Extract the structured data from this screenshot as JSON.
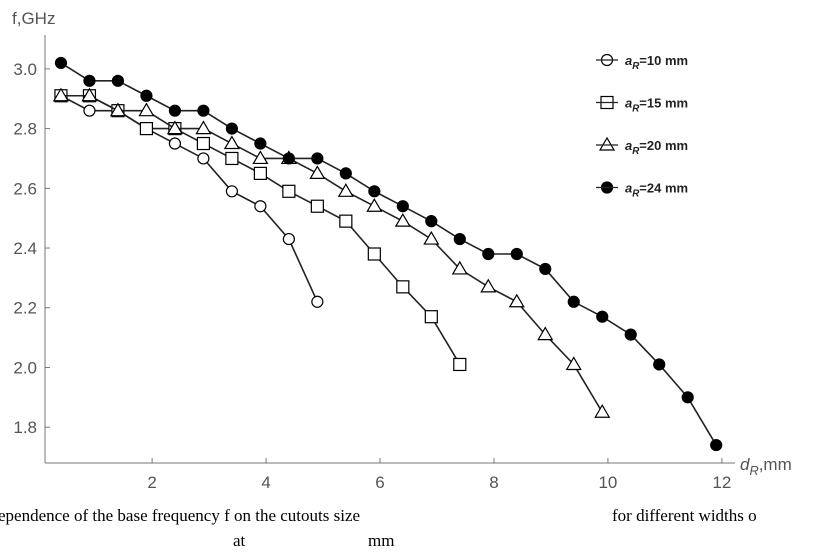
{
  "chart_data": {
    "type": "line",
    "ylabel": "f,GHz",
    "xlabel": "dR,mm",
    "xlim": [
      0.12,
      12.23
    ],
    "ylim": [
      1.68,
      3.08
    ],
    "xticks": [
      2,
      4,
      6,
      8,
      10,
      12
    ],
    "yticks": [
      1.8,
      {
        "value": 2,
        "label": "2.0"
      },
      2.2,
      2.4,
      2.6,
      2.8,
      {
        "value": 3,
        "label": "3.0"
      }
    ],
    "series": [
      {
        "name": "aR=10 mm",
        "marker": "circle",
        "color": "#ffffff",
        "x": [
          0.4,
          0.9,
          1.4,
          1.9,
          2.4,
          2.9,
          3.4,
          3.9,
          4.4,
          4.9
        ],
        "values": [
          2.91,
          2.86,
          2.86,
          2.8,
          2.75,
          2.7,
          2.59,
          2.54,
          2.43,
          2.22
        ]
      },
      {
        "name": "aR=15 mm",
        "marker": "square",
        "color": "#ffffff",
        "x": [
          0.4,
          0.9,
          1.4,
          1.9,
          2.4,
          2.9,
          3.4,
          3.9,
          4.4,
          4.9,
          5.4,
          5.9,
          6.4,
          6.9,
          7.4
        ],
        "values": [
          2.91,
          2.91,
          2.86,
          2.8,
          2.8,
          2.75,
          2.7,
          2.65,
          2.59,
          2.54,
          2.49,
          2.38,
          2.27,
          2.17,
          2.01
        ]
      },
      {
        "name": "aR=20 mm",
        "marker": "triangle",
        "color": "#ffffff",
        "x": [
          0.4,
          0.9,
          1.4,
          1.9,
          2.4,
          2.9,
          3.4,
          3.9,
          4.4,
          4.9,
          5.4,
          5.9,
          6.4,
          6.9,
          7.4,
          7.9,
          8.4,
          8.9,
          9.4,
          9.9
        ],
        "values": [
          2.91,
          2.91,
          2.86,
          2.86,
          2.8,
          2.8,
          2.75,
          2.7,
          2.7,
          2.65,
          2.59,
          2.54,
          2.49,
          2.43,
          2.33,
          2.27,
          2.22,
          2.11,
          2.01,
          1.85
        ]
      },
      {
        "name": "aR=24 mm",
        "marker": "circle",
        "color": "#000000",
        "x": [
          0.4,
          0.9,
          1.4,
          1.9,
          2.4,
          2.9,
          3.4,
          3.9,
          4.4,
          4.9,
          5.4,
          5.9,
          6.4,
          6.9,
          7.4,
          7.9,
          8.4,
          8.9,
          9.4,
          9.9,
          10.4,
          10.9,
          11.4,
          11.9
        ],
        "values": [
          3.02,
          2.96,
          2.96,
          2.91,
          2.86,
          2.86,
          2.8,
          2.75,
          2.7,
          2.7,
          2.65,
          2.59,
          2.54,
          2.49,
          2.43,
          2.38,
          2.38,
          2.33,
          2.22,
          2.17,
          2.11,
          2.01,
          1.9,
          1.74
        ]
      }
    ]
  },
  "caption": {
    "line1a": "ependence of the base frequency f on the cutouts size",
    "line1b": "for different widths o",
    "line2a": "at",
    "line2b": "mm"
  }
}
